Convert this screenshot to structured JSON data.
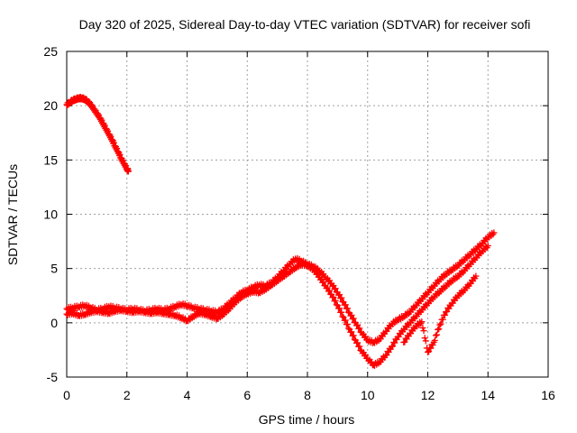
{
  "chart_data": {
    "type": "scatter",
    "title": "Day 320 of 2025, Sidereal Day-to-day VTEC variation (SDTVAR) for receiver sofi",
    "xlabel": "GPS time / hours",
    "ylabel": "SDTVAR / TECUs",
    "xlim": [
      0,
      16
    ],
    "ylim": [
      -5,
      25
    ],
    "xticks": [
      "0",
      "2",
      "4",
      "6",
      "8",
      "10",
      "12",
      "14",
      "16"
    ],
    "yticks": [
      "-5",
      "0",
      "5",
      "10",
      "15",
      "20",
      "25"
    ],
    "grid": true,
    "marker": "plus",
    "color": "#ff0000",
    "series": [
      {
        "name": "segment-early",
        "x": [
          0.0,
          0.1,
          0.2,
          0.3,
          0.4,
          0.5,
          0.6,
          0.7,
          0.8,
          0.9,
          1.0,
          1.1,
          1.2,
          1.3,
          1.4,
          1.5,
          1.6,
          1.7,
          1.8,
          1.9,
          2.0,
          2.05
        ],
        "y": [
          20.1,
          20.3,
          20.5,
          20.6,
          20.7,
          20.7,
          20.6,
          20.4,
          20.1,
          19.7,
          19.3,
          18.9,
          18.4,
          17.9,
          17.4,
          16.9,
          16.3,
          15.8,
          15.2,
          14.7,
          14.2,
          14.0
        ]
      },
      {
        "name": "segment-main-a",
        "x": [
          0.0,
          0.2,
          0.4,
          0.6,
          0.8,
          1.0,
          1.2,
          1.4,
          1.6,
          1.8,
          2.0,
          2.2,
          2.4,
          2.6,
          2.8,
          3.0,
          3.2,
          3.4,
          3.6,
          3.8,
          4.0,
          4.2,
          4.4,
          4.6,
          4.8,
          5.0,
          5.2,
          5.4,
          5.6,
          5.8,
          6.0,
          6.2,
          6.4,
          6.6,
          6.8,
          7.0,
          7.2,
          7.4,
          7.6,
          7.8,
          8.0,
          8.2,
          8.4,
          8.6,
          8.8,
          9.0,
          9.2,
          9.4,
          9.6,
          9.8,
          10.0,
          10.2,
          10.4,
          10.6,
          10.8,
          11.0,
          11.2,
          11.4,
          11.6,
          11.8,
          12.0,
          12.2,
          12.4,
          12.6,
          12.8,
          13.0,
          13.2,
          13.4,
          13.6,
          13.8,
          14.0,
          14.2
        ],
        "y": [
          1.3,
          1.4,
          1.5,
          1.6,
          1.4,
          1.2,
          1.3,
          1.5,
          1.4,
          1.3,
          1.2,
          1.3,
          1.2,
          1.1,
          1.2,
          1.3,
          1.2,
          1.3,
          1.5,
          1.7,
          1.6,
          1.4,
          1.3,
          1.2,
          1.1,
          1.0,
          1.3,
          1.8,
          2.3,
          2.8,
          3.0,
          3.3,
          3.5,
          3.4,
          3.7,
          4.2,
          4.8,
          5.4,
          5.9,
          5.7,
          5.4,
          5.2,
          4.8,
          4.2,
          3.6,
          2.8,
          1.9,
          0.9,
          0.0,
          -0.9,
          -1.6,
          -1.8,
          -1.5,
          -0.8,
          -0.1,
          0.3,
          0.6,
          1.0,
          1.6,
          2.2,
          2.8,
          3.4,
          4.0,
          4.5,
          4.9,
          5.3,
          5.8,
          6.3,
          6.8,
          7.3,
          7.9,
          8.3
        ]
      },
      {
        "name": "segment-main-b",
        "x": [
          0.0,
          0.2,
          0.4,
          0.6,
          0.8,
          1.0,
          1.2,
          1.4,
          1.6,
          1.8,
          2.0,
          2.2,
          2.4,
          2.6,
          2.8,
          3.0,
          3.2,
          3.4,
          3.6,
          3.8,
          4.0,
          4.2,
          4.4,
          4.6,
          4.8,
          5.0,
          5.2,
          5.4,
          5.6,
          5.8,
          6.0,
          6.2,
          6.4,
          6.6,
          6.8,
          7.0,
          7.2,
          7.4,
          7.6,
          7.8,
          8.0,
          8.2,
          8.4,
          8.6,
          8.8,
          9.0,
          9.2,
          9.4,
          9.6,
          9.8,
          10.0,
          10.2,
          10.4,
          10.6,
          10.8,
          11.0,
          11.2,
          11.4,
          11.6,
          11.8,
          12.0,
          12.2,
          12.4,
          12.6,
          12.8,
          13.0,
          13.2,
          13.4,
          13.6,
          13.8,
          14.0
        ],
        "y": [
          0.8,
          0.9,
          0.7,
          0.8,
          1.0,
          1.1,
          1.0,
          0.9,
          1.1,
          1.2,
          1.1,
          1.0,
          1.1,
          1.0,
          0.9,
          1.0,
          0.9,
          0.8,
          0.7,
          0.5,
          0.2,
          0.6,
          0.9,
          0.8,
          0.6,
          0.4,
          0.8,
          1.3,
          1.9,
          2.4,
          2.7,
          2.9,
          2.8,
          3.1,
          3.5,
          3.9,
          4.3,
          4.7,
          5.1,
          5.4,
          5.3,
          4.9,
          4.2,
          3.4,
          2.6,
          1.6,
          0.5,
          -0.6,
          -1.6,
          -2.6,
          -3.3,
          -3.9,
          -3.6,
          -3.0,
          -2.2,
          -1.3,
          -0.6,
          0.0,
          0.6,
          1.2,
          1.8,
          2.4,
          2.9,
          3.4,
          3.9,
          4.3,
          4.8,
          5.4,
          6.0,
          6.6,
          7.1
        ]
      },
      {
        "name": "segment-late",
        "x": [
          11.2,
          11.4,
          11.6,
          11.8,
          12.0,
          12.2,
          12.4,
          12.6,
          12.8,
          13.0,
          13.2,
          13.4,
          13.6
        ],
        "y": [
          -1.8,
          -1.0,
          -0.3,
          0.1,
          -2.7,
          -1.8,
          -0.2,
          1.0,
          1.8,
          2.5,
          3.0,
          3.6,
          4.3
        ]
      }
    ]
  }
}
